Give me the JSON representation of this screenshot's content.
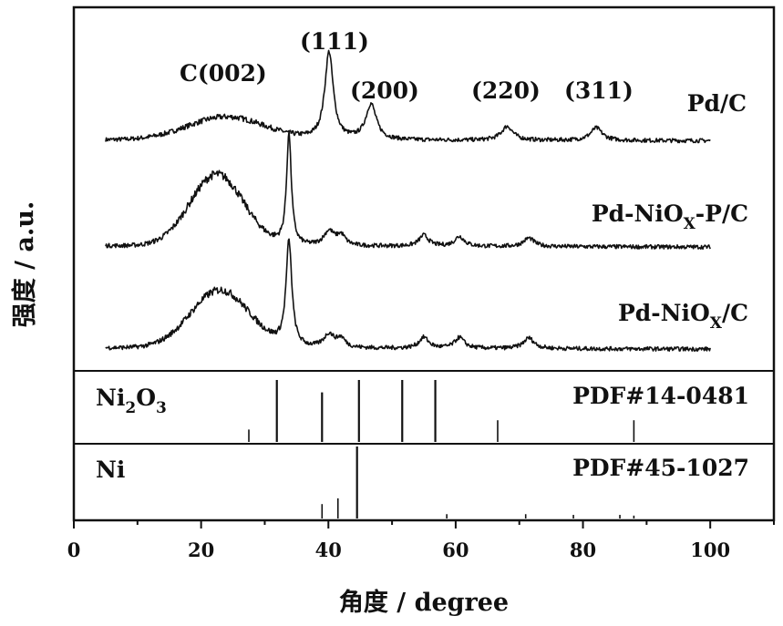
{
  "chart_data": {
    "type": "line",
    "xlabel": "角度 / degree",
    "ylabel": "强度 / a.u.",
    "xlim": [
      0,
      110
    ],
    "x_ticks": [
      "0",
      "20",
      "40",
      "60",
      "80",
      "100"
    ],
    "series": [
      {
        "name": "Pd/C",
        "name_main": "Pd/C",
        "name_sub": "",
        "name_tail": "",
        "x_range": [
          5,
          100
        ],
        "baseline": 0.05,
        "broad_hump": {
          "center": 24,
          "width": 6,
          "height": 0.2
        },
        "peaks": [
          {
            "x": 40.1,
            "height": 0.78,
            "width": 0.8
          },
          {
            "x": 46.7,
            "height": 0.32,
            "width": 1.0
          },
          {
            "x": 68.1,
            "height": 0.13,
            "width": 1.1
          },
          {
            "x": 82.1,
            "height": 0.12,
            "width": 1.1
          }
        ]
      },
      {
        "name": "Pd-NiOX-P/C",
        "name_main": "Pd-NiO",
        "name_sub": "X",
        "name_tail": "-P/C",
        "x_range": [
          5,
          100
        ],
        "baseline": 0.08,
        "broad_hump": {
          "center": 22.5,
          "width": 4.2,
          "height": 0.62
        },
        "peaks": [
          {
            "x": 33.8,
            "height": 0.98,
            "width": 0.45
          },
          {
            "x": 40.1,
            "height": 0.13,
            "width": 1.0
          },
          {
            "x": 42.0,
            "height": 0.09,
            "width": 0.8
          },
          {
            "x": 55.0,
            "height": 0.1,
            "width": 0.9
          },
          {
            "x": 60.6,
            "height": 0.09,
            "width": 0.9
          },
          {
            "x": 71.5,
            "height": 0.08,
            "width": 1.0
          }
        ]
      },
      {
        "name": "Pd-NiOX/C",
        "name_main": "Pd-NiO",
        "name_sub": "X",
        "name_tail": "/C",
        "x_range": [
          5,
          100
        ],
        "baseline": 0.08,
        "broad_hump": {
          "center": 23,
          "width": 4.6,
          "height": 0.5
        },
        "peaks": [
          {
            "x": 33.8,
            "height": 0.92,
            "width": 0.55
          },
          {
            "x": 40.1,
            "height": 0.12,
            "width": 1.0
          },
          {
            "x": 42.0,
            "height": 0.08,
            "width": 0.8
          },
          {
            "x": 55.0,
            "height": 0.1,
            "width": 0.9
          },
          {
            "x": 60.6,
            "height": 0.1,
            "width": 0.9
          },
          {
            "x": 71.5,
            "height": 0.1,
            "width": 1.0
          }
        ]
      }
    ],
    "peak_annotations": [
      "C(002)",
      "(111)",
      "(200)",
      "(220)",
      "(311)"
    ],
    "references": [
      {
        "phase_main": "Ni",
        "phase_sub1": "2",
        "phase_mid": "O",
        "phase_sub2": "3",
        "card": "PDF#14-0481",
        "lines": [
          {
            "x": 27.5,
            "intensity": 0.2
          },
          {
            "x": 31.9,
            "intensity": 1.0
          },
          {
            "x": 39.0,
            "intensity": 0.8
          },
          {
            "x": 44.8,
            "intensity": 1.0
          },
          {
            "x": 51.6,
            "intensity": 1.0
          },
          {
            "x": 56.8,
            "intensity": 1.0
          },
          {
            "x": 66.6,
            "intensity": 0.35
          },
          {
            "x": 88.0,
            "intensity": 0.35
          }
        ]
      },
      {
        "phase_main": "Ni",
        "card": "PDF#45-1027",
        "lines": [
          {
            "x": 39.0,
            "intensity": 0.2
          },
          {
            "x": 41.5,
            "intensity": 0.28
          },
          {
            "x": 44.5,
            "intensity": 1.0
          },
          {
            "x": 58.6,
            "intensity": 0.06
          },
          {
            "x": 71.0,
            "intensity": 0.06
          },
          {
            "x": 78.5,
            "intensity": 0.05
          },
          {
            "x": 85.8,
            "intensity": 0.05
          },
          {
            "x": 88.0,
            "intensity": 0.04
          }
        ]
      }
    ]
  }
}
